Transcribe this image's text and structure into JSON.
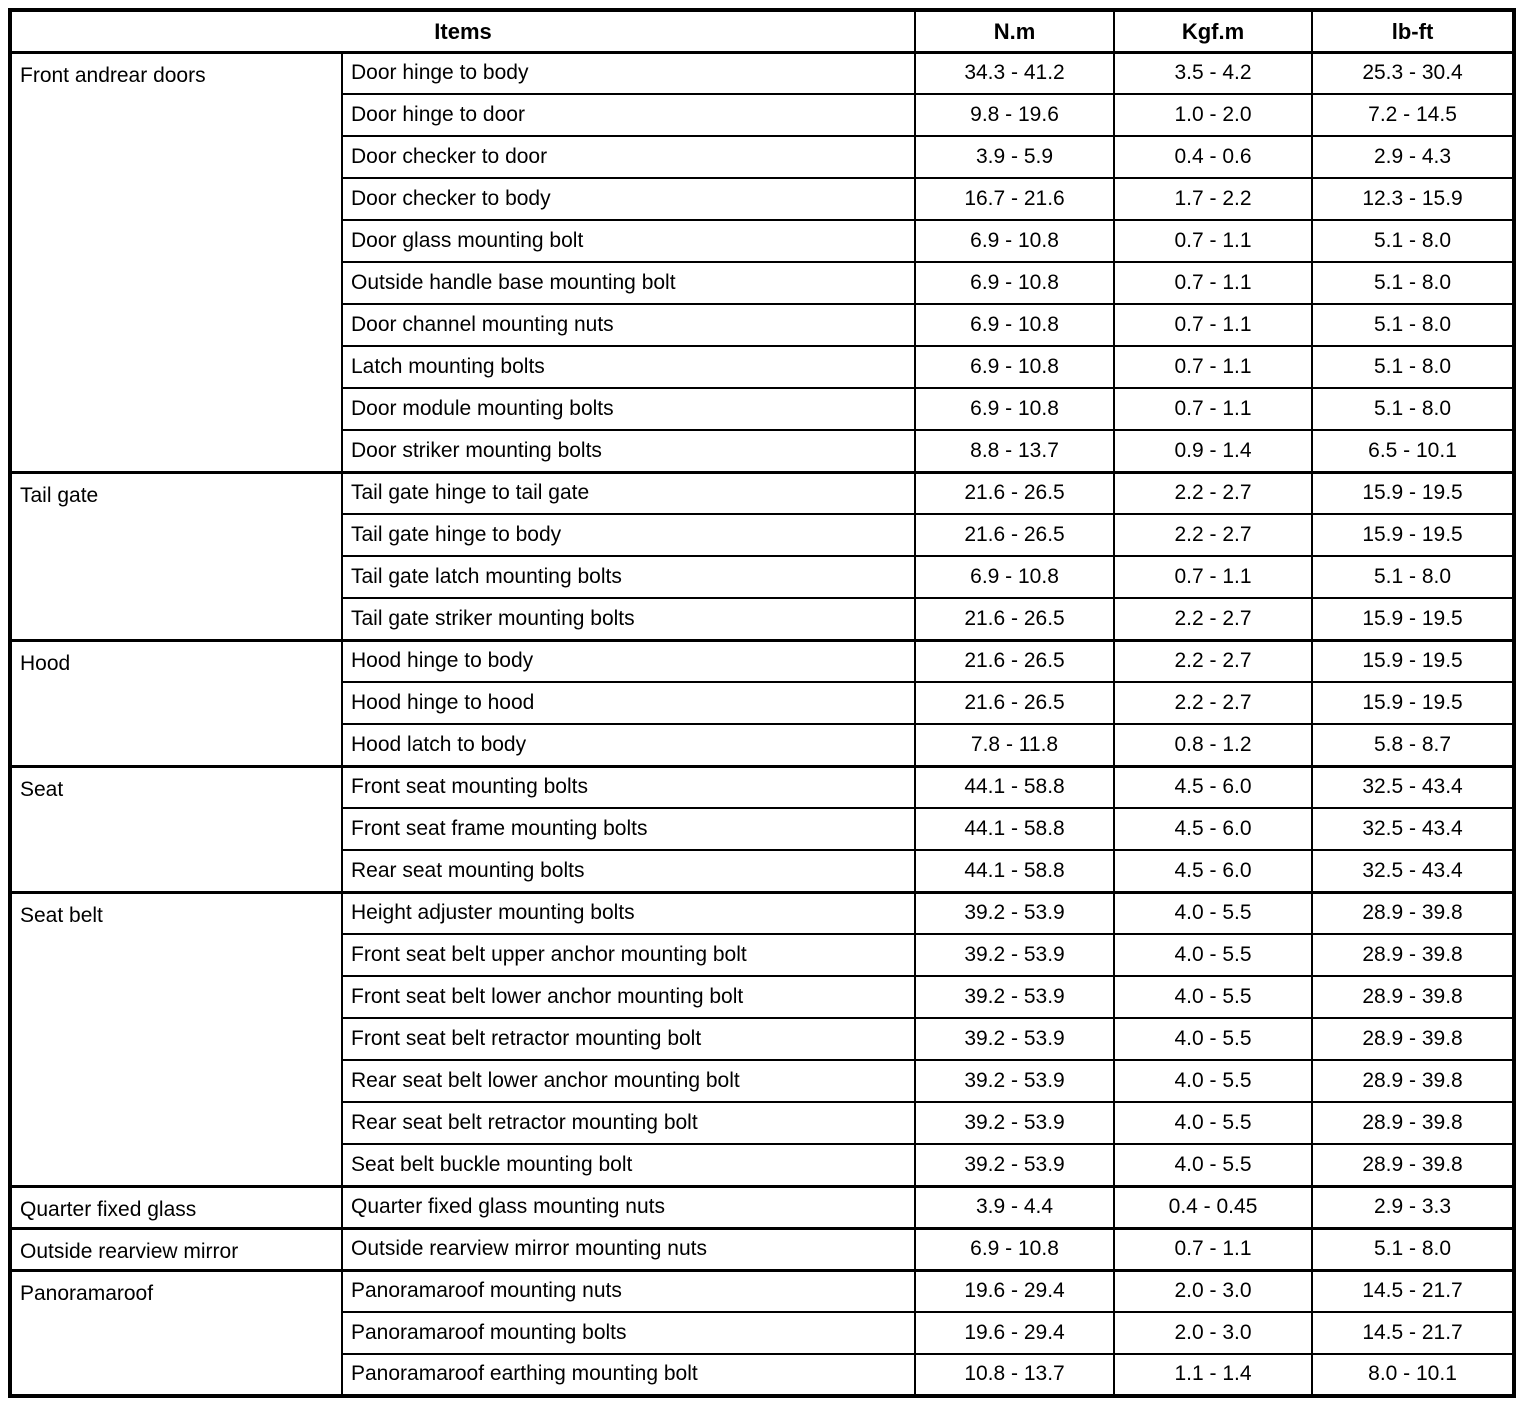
{
  "table": {
    "headers": {
      "items": "Items",
      "nm": "N.m",
      "kgfm": "Kgf.m",
      "lbft": "lb-ft"
    },
    "sections": [
      {
        "category": "Front andrear doors",
        "rows": [
          {
            "item": "Door hinge to body",
            "nm": "34.3 - 41.2",
            "kgfm": "3.5 - 4.2",
            "lbft": "25.3 - 30.4"
          },
          {
            "item": "Door hinge to door",
            "nm": "9.8 - 19.6",
            "kgfm": "1.0 - 2.0",
            "lbft": "7.2 - 14.5"
          },
          {
            "item": "Door checker to door",
            "nm": "3.9 - 5.9",
            "kgfm": "0.4 - 0.6",
            "lbft": "2.9 - 4.3"
          },
          {
            "item": "Door checker to body",
            "nm": "16.7 - 21.6",
            "kgfm": "1.7 - 2.2",
            "lbft": "12.3 - 15.9"
          },
          {
            "item": "Door glass mounting bolt",
            "nm": "6.9 - 10.8",
            "kgfm": "0.7 - 1.1",
            "lbft": "5.1 - 8.0"
          },
          {
            "item": "Outside handle base mounting bolt",
            "nm": "6.9 - 10.8",
            "kgfm": "0.7 - 1.1",
            "lbft": "5.1 - 8.0"
          },
          {
            "item": "Door channel mounting nuts",
            "nm": "6.9 - 10.8",
            "kgfm": "0.7 - 1.1",
            "lbft": "5.1 - 8.0"
          },
          {
            "item": "Latch mounting bolts",
            "nm": "6.9 - 10.8",
            "kgfm": "0.7 - 1.1",
            "lbft": "5.1 - 8.0"
          },
          {
            "item": "Door module mounting bolts",
            "nm": "6.9 - 10.8",
            "kgfm": "0.7 - 1.1",
            "lbft": "5.1 - 8.0"
          },
          {
            "item": "Door striker mounting bolts",
            "nm": "8.8 - 13.7",
            "kgfm": "0.9 - 1.4",
            "lbft": "6.5 - 10.1"
          }
        ]
      },
      {
        "category": "Tail gate",
        "rows": [
          {
            "item": "Tail gate hinge to tail gate",
            "nm": "21.6 - 26.5",
            "kgfm": "2.2 - 2.7",
            "lbft": "15.9 - 19.5"
          },
          {
            "item": "Tail gate hinge to body",
            "nm": "21.6 - 26.5",
            "kgfm": "2.2 - 2.7",
            "lbft": "15.9 - 19.5"
          },
          {
            "item": "Tail gate latch mounting bolts",
            "nm": "6.9 - 10.8",
            "kgfm": "0.7 - 1.1",
            "lbft": "5.1 - 8.0"
          },
          {
            "item": "Tail gate striker mounting bolts",
            "nm": "21.6 - 26.5",
            "kgfm": "2.2 - 2.7",
            "lbft": "15.9 - 19.5"
          }
        ]
      },
      {
        "category": "Hood",
        "rows": [
          {
            "item": "Hood hinge to body",
            "nm": "21.6 - 26.5",
            "kgfm": "2.2 - 2.7",
            "lbft": "15.9 - 19.5"
          },
          {
            "item": "Hood hinge to hood",
            "nm": "21.6 - 26.5",
            "kgfm": "2.2 - 2.7",
            "lbft": "15.9 - 19.5"
          },
          {
            "item": "Hood latch to body",
            "nm": "7.8 - 11.8",
            "kgfm": "0.8 - 1.2",
            "lbft": "5.8 - 8.7"
          }
        ]
      },
      {
        "category": "Seat",
        "rows": [
          {
            "item": "Front seat mounting bolts",
            "nm": "44.1 - 58.8",
            "kgfm": "4.5 - 6.0",
            "lbft": "32.5 - 43.4"
          },
          {
            "item": "Front seat frame mounting bolts",
            "nm": "44.1 - 58.8",
            "kgfm": "4.5 - 6.0",
            "lbft": "32.5 - 43.4"
          },
          {
            "item": "Rear seat mounting bolts",
            "nm": "44.1 - 58.8",
            "kgfm": "4.5 - 6.0",
            "lbft": "32.5 - 43.4"
          }
        ]
      },
      {
        "category": "Seat belt",
        "rows": [
          {
            "item": "Height adjuster mounting bolts",
            "nm": "39.2 - 53.9",
            "kgfm": "4.0 - 5.5",
            "lbft": "28.9 - 39.8"
          },
          {
            "item": "Front seat belt upper anchor mounting bolt",
            "nm": "39.2 - 53.9",
            "kgfm": "4.0 - 5.5",
            "lbft": "28.9 - 39.8"
          },
          {
            "item": "Front seat belt lower anchor mounting bolt",
            "nm": "39.2 - 53.9",
            "kgfm": "4.0 - 5.5",
            "lbft": "28.9 - 39.8"
          },
          {
            "item": "Front seat belt retractor mounting bolt",
            "nm": "39.2 - 53.9",
            "kgfm": "4.0 - 5.5",
            "lbft": "28.9 - 39.8"
          },
          {
            "item": "Rear seat belt lower anchor mounting bolt",
            "nm": "39.2 - 53.9",
            "kgfm": "4.0 - 5.5",
            "lbft": "28.9 - 39.8"
          },
          {
            "item": "Rear seat belt retractor mounting bolt",
            "nm": "39.2 - 53.9",
            "kgfm": "4.0 - 5.5",
            "lbft": "28.9 - 39.8"
          },
          {
            "item": "Seat belt buckle mounting bolt",
            "nm": "39.2 - 53.9",
            "kgfm": "4.0 - 5.5",
            "lbft": "28.9 - 39.8"
          }
        ]
      },
      {
        "category": "Quarter fixed glass",
        "rows": [
          {
            "item": "Quarter fixed glass mounting nuts",
            "nm": "3.9 - 4.4",
            "kgfm": "0.4 - 0.45",
            "lbft": "2.9 - 3.3"
          }
        ]
      },
      {
        "category": "Outside rearview mirror",
        "rows": [
          {
            "item": "Outside rearview mirror mounting nuts",
            "nm": "6.9 - 10.8",
            "kgfm": "0.7 - 1.1",
            "lbft": "5.1 - 8.0"
          }
        ]
      },
      {
        "category": "Panoramaroof",
        "rows": [
          {
            "item": "Panoramaroof mounting nuts",
            "nm": "19.6 - 29.4",
            "kgfm": "2.0 - 3.0",
            "lbft": "14.5 - 21.7"
          },
          {
            "item": "Panoramaroof mounting bolts",
            "nm": "19.6 - 29.4",
            "kgfm": "2.0 - 3.0",
            "lbft": "14.5 - 21.7"
          },
          {
            "item": "Panoramaroof earthing mounting bolt",
            "nm": "10.8 - 13.7",
            "kgfm": "1.1 - 1.4",
            "lbft": "8.0 - 10.1"
          }
        ]
      }
    ]
  },
  "colors": {
    "border": "#000000",
    "background": "#ffffff",
    "text": "#000000"
  }
}
